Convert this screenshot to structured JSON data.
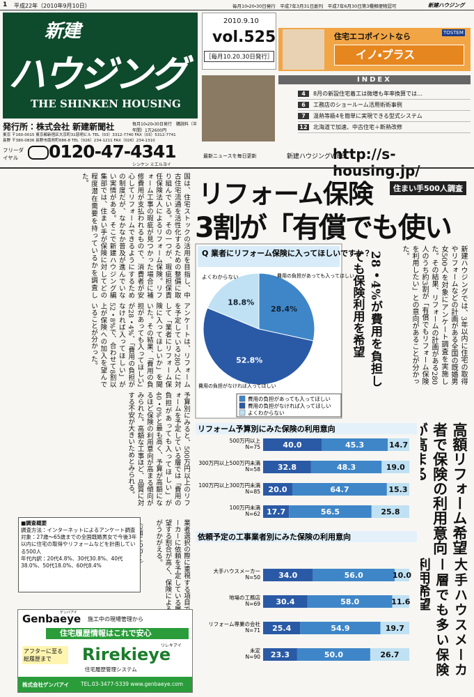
{
  "top_bar": {
    "page": "1",
    "date": "平成22年（2010年9月10日）",
    "issue_info": "毎月10・20・30日発行　平成7年3月31日創刊　平成7年6月30日第3種郵便物認可",
    "paper": "新建ハウジング"
  },
  "masthead": {
    "title_top": "新建",
    "title_main": "ハウジング",
    "title_en": "THE SHINKEN HOUSING",
    "publisher": "発行所：株式会社 新建新聞社",
    "issue_note": "毎月10・20・30日発行　購読料（半年間）1万2600円",
    "addresses": [
      "東京 〒160-0015 東京都新宿区大京町31慈明ビル TEL（03）3312-7740 FAX（03）5312-7741",
      "長野 〒380-0836 長野市南県町686-8 TEL（026）234-1211 FAX（026）234-1310"
    ]
  },
  "issue": {
    "date": "2010.9.10",
    "vol": "vol.525",
    "schedule": "［毎月10.20.30日発行］"
  },
  "ad_top": {
    "lead": "住宅エコポイントなら",
    "brand": "イノ・プラス",
    "badge": "TOSTEM"
  },
  "index": {
    "title": "INDEX",
    "items": [
      {
        "page": "4",
        "text": "8月の新設住宅着工は微増も年率換算では…"
      },
      {
        "page": "6",
        "text": "工務店のショールーム活用術術事例"
      },
      {
        "page": "7",
        "text": "温熱等級4を簡単に実現できる型式システム"
      },
      {
        "page": "12",
        "text": "北海道で加速、中古住宅＋断熱改修"
      }
    ]
  },
  "contact": {
    "label": "フリーダイヤル",
    "phone": "0120-47-4341",
    "kana": "シンケン ミエルヨイ",
    "web_note": "最新ニュースを毎日更新",
    "web_label": "新建ハウジングWEB",
    "url": "http://s-housing.jp/"
  },
  "article": {
    "headline_1": "リフォーム保険",
    "headline_2": "3割が「有償でも使いたい」",
    "tag": "住まい手500人調査",
    "lead": "新建ハウジングでは、3年以内に住宅の取得やリフォームなどの計画がある全国の既婚男女500人を対象にアンケート調査を実施した。その結果、リフォームの計画がある280人のうち約3割が「有償でもリフォーム保険を利用したい」との意向があることが分かった。",
    "subhead_1": "28・4%が費用を負担しても保険利用を希望",
    "subhead_2": "高額リフォーム希望者で保険の利用意向が高まる",
    "subhead_3": "大手ハウスメーカー層でも多い保険利用希望",
    "body": [
      "国は、住宅ストックの活用を目指し、中古住宅流通を活性化するための整備に取り組んでいる。その一つが、瑕疵担保責任保険法人によるリフォーム保険。リフォーム工事の瑕疵が見つかった場合に補修費用が支払われるもので、消費者が安心してリフォームできるようにするための制度だが、なかなか普及が進んでいない実情がある。そこで新建ハウジング編集部では、住まい手が保険に対してどの程度潜在需要を持っているかを調査した。",
      "アンケートは、リフォームを予定している280人に対して「業者にリフォーム保険に入ってほしいか」を聞いた。その結果、「費用の負担があっても入ってほしい」が28・4%、「費用の負担がなければ入ってほしい」が52・8%で、合わせて8割以上が保険への加入を望んでいることが分かった。",
      "予算別にみると、500万円以上のリフォームを予定している層では「費用の負担があっても入ってほしい」が40・0%と最も高く、予算が高額になるほど保険の利用意向が高まる傾向がみられた。高額な工事ほど、品質に対する不安が大きいためとみられる。",
      "業者選択の際に重視する項目では、大手ハウスメーカーに依頼を予定している層でも保険利用を希望する割合が高く、保険による安心を求める傾向がうかがえる。"
    ],
    "continued": "（2面につづく）"
  },
  "survey": {
    "title": "■調査概要",
    "lines": [
      "調査方法：インターネットによるアンケート調査",
      "対象：27歳～65歳までの全国既婚男女で今後3年以内に住宅の取得やリフォームなどを計画している500人",
      "年代内訳：20代4.8%、30代30.8%、40代38.0%、50代18.0%、60代8.4%"
    ]
  },
  "charts": [
    {
      "type": "pie",
      "title": "Q 業者にリフォーム保険に入ってほしいですか？",
      "categories": [
        "費用の負担があっても入ってほしい",
        "費用の負担がなければ入ってほしい",
        "よくわからない"
      ],
      "values": [
        28.4,
        52.8,
        18.8
      ],
      "value_labels": [
        "28.4%",
        "52.8%",
        "18.8%"
      ],
      "colors": [
        "#3f86c8",
        "#2a5aa6",
        "#bfe1f3"
      ]
    },
    {
      "type": "bar",
      "stacked": true,
      "title": "リフォーム予算別にみた保険の利用意向",
      "categories": [
        "500万円以上",
        "300万円以上500万円未満",
        "100万円以上300万円未満",
        "100万円未満"
      ],
      "sample_sizes": [
        "N=75",
        "N=58",
        "N=85",
        "N=62"
      ],
      "xlim": [
        0,
        100
      ],
      "series": [
        {
          "color": "#2a5aa6",
          "values": [
            40.0,
            32.8,
            20.0,
            17.7
          ],
          "value_labels": [
            "40.0",
            "32.8",
            "20.0",
            "17.7"
          ]
        },
        {
          "color": "#3f86c8",
          "values": [
            45.3,
            48.3,
            64.7,
            56.5
          ],
          "value_labels": [
            "45.3",
            "48.3",
            "64.7",
            "56.5"
          ]
        },
        {
          "color": "#bfe1f3",
          "values": [
            14.7,
            19.0,
            15.3,
            25.8
          ],
          "value_labels": [
            "14.7",
            "19.0",
            "15.3",
            "25.8"
          ]
        }
      ]
    },
    {
      "type": "bar",
      "stacked": true,
      "title": "依頼予定の工事業者別にみた保険の利用意向",
      "categories": [
        "大手ハウスメーカー",
        "地場の工務店",
        "リフォーム専業の会社",
        "未定"
      ],
      "sample_sizes": [
        "N=50",
        "N=69",
        "N=71",
        "N=90"
      ],
      "xlim": [
        0,
        100
      ],
      "series": [
        {
          "color": "#2a5aa6",
          "values": [
            34.0,
            30.4,
            25.4,
            23.3
          ],
          "value_labels": [
            "34.0",
            "30.4",
            "25.4",
            "23.3"
          ]
        },
        {
          "color": "#3f86c8",
          "values": [
            56.0,
            58.0,
            54.9,
            50.0
          ],
          "value_labels": [
            "56.0",
            "58.0",
            "54.9",
            "50.0"
          ]
        },
        {
          "color": "#bfe1f3",
          "values": [
            10.0,
            11.6,
            19.7,
            26.7
          ],
          "value_labels": [
            "10.0",
            "11.6",
            "19.7",
            "26.7"
          ]
        }
      ]
    }
  ],
  "ad_bottom": {
    "brand": "Genbaeye",
    "brand_kana": "ゲンバアイ",
    "tagline": "施工中の現場管理から",
    "banner": "住宅履歴情報はこれで安心",
    "after": "アフターに至る総履歴まで",
    "product": "Rirekieye",
    "product_kana": "リレキアイ",
    "product_desc": "住宅履歴管理システム",
    "company": "株式会社ゲンバアイ",
    "contact": "TEL.03-3477-5339 www.genbaeye.com"
  }
}
